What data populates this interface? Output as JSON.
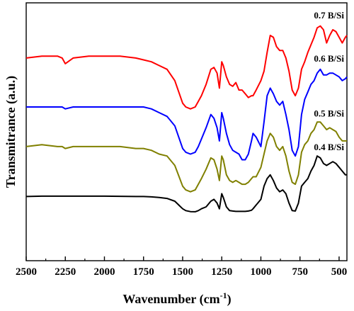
{
  "chart_data": {
    "type": "line",
    "xlabel": "Wavenumber (cm",
    "xlabel_sup": "-1",
    "xlabel_close": ")",
    "ylabel": "Transmitrance (a.u.)",
    "xlim": [
      2500,
      450
    ],
    "x_reversed": true,
    "y_ticks": false,
    "grid": false,
    "x_ticks": [
      2500,
      2250,
      2000,
      1750,
      1500,
      1250,
      1000,
      750,
      500
    ],
    "x_tick_labels": [
      "2500",
      "2250",
      "2000",
      "1750",
      "1500",
      "1250",
      "1000",
      "750",
      "500"
    ],
    "series": [
      {
        "name": "0.7 B/Si",
        "color": "#ff0000",
        "x": [
          2500,
          2400,
          2300,
          2270,
          2250,
          2200,
          2100,
          2000,
          1900,
          1800,
          1750,
          1700,
          1650,
          1600,
          1550,
          1500,
          1480,
          1450,
          1420,
          1400,
          1380,
          1350,
          1320,
          1300,
          1280,
          1265,
          1250,
          1240,
          1220,
          1200,
          1180,
          1160,
          1140,
          1120,
          1100,
          1080,
          1060,
          1050,
          1030,
          1000,
          980,
          960,
          940,
          920,
          900,
          880,
          860,
          840,
          820,
          800,
          780,
          760,
          740,
          720,
          700,
          680,
          660,
          640,
          620,
          600,
          580,
          560,
          540,
          520,
          500,
          480,
          460,
          450
        ],
        "y": [
          0.82,
          0.83,
          0.83,
          0.82,
          0.79,
          0.82,
          0.83,
          0.83,
          0.83,
          0.82,
          0.81,
          0.8,
          0.78,
          0.76,
          0.7,
          0.58,
          0.56,
          0.55,
          0.56,
          0.59,
          0.62,
          0.68,
          0.76,
          0.77,
          0.74,
          0.66,
          0.8,
          0.78,
          0.72,
          0.68,
          0.67,
          0.69,
          0.65,
          0.65,
          0.63,
          0.61,
          0.62,
          0.62,
          0.65,
          0.7,
          0.75,
          0.85,
          0.94,
          0.93,
          0.88,
          0.86,
          0.86,
          0.82,
          0.75,
          0.65,
          0.62,
          0.66,
          0.76,
          0.8,
          0.85,
          0.89,
          0.93,
          0.98,
          0.99,
          0.97,
          0.9,
          0.94,
          0.97,
          0.96,
          0.93,
          0.9,
          0.93,
          0.94
        ]
      },
      {
        "name": "0.6 B/Si",
        "color": "#0000ff",
        "x": [
          2500,
          2400,
          2300,
          2270,
          2250,
          2200,
          2100,
          2000,
          1900,
          1800,
          1750,
          1700,
          1650,
          1600,
          1550,
          1500,
          1480,
          1450,
          1420,
          1400,
          1380,
          1350,
          1320,
          1300,
          1280,
          1265,
          1250,
          1240,
          1220,
          1200,
          1180,
          1160,
          1140,
          1120,
          1100,
          1080,
          1060,
          1050,
          1030,
          1000,
          980,
          960,
          940,
          920,
          900,
          880,
          860,
          840,
          820,
          800,
          780,
          760,
          740,
          720,
          700,
          680,
          660,
          640,
          620,
          600,
          580,
          560,
          540,
          520,
          500,
          480,
          460,
          450
        ],
        "y": [
          0.56,
          0.56,
          0.56,
          0.56,
          0.55,
          0.56,
          0.56,
          0.56,
          0.56,
          0.56,
          0.56,
          0.55,
          0.53,
          0.51,
          0.46,
          0.34,
          0.32,
          0.31,
          0.32,
          0.35,
          0.39,
          0.45,
          0.52,
          0.5,
          0.45,
          0.38,
          0.53,
          0.5,
          0.42,
          0.36,
          0.33,
          0.32,
          0.31,
          0.28,
          0.28,
          0.31,
          0.38,
          0.42,
          0.4,
          0.35,
          0.48,
          0.62,
          0.66,
          0.63,
          0.59,
          0.57,
          0.59,
          0.52,
          0.44,
          0.33,
          0.3,
          0.35,
          0.52,
          0.6,
          0.64,
          0.68,
          0.7,
          0.74,
          0.76,
          0.73,
          0.73,
          0.74,
          0.74,
          0.73,
          0.72,
          0.7,
          0.71,
          0.72
        ]
      },
      {
        "name": "0.5 B/Si",
        "color": "#808000",
        "x": [
          2500,
          2400,
          2300,
          2270,
          2250,
          2200,
          2100,
          2000,
          1900,
          1800,
          1750,
          1700,
          1650,
          1600,
          1550,
          1500,
          1480,
          1450,
          1420,
          1400,
          1380,
          1350,
          1320,
          1300,
          1280,
          1265,
          1250,
          1240,
          1220,
          1200,
          1180,
          1160,
          1140,
          1120,
          1100,
          1080,
          1060,
          1050,
          1030,
          1000,
          980,
          960,
          940,
          920,
          900,
          880,
          860,
          840,
          820,
          800,
          780,
          760,
          740,
          720,
          700,
          680,
          660,
          640,
          620,
          600,
          580,
          560,
          540,
          520,
          500,
          480,
          460,
          450
        ],
        "y": [
          0.35,
          0.36,
          0.35,
          0.35,
          0.34,
          0.35,
          0.35,
          0.35,
          0.35,
          0.34,
          0.34,
          0.33,
          0.31,
          0.3,
          0.25,
          0.14,
          0.12,
          0.11,
          0.12,
          0.15,
          0.18,
          0.23,
          0.29,
          0.28,
          0.23,
          0.17,
          0.3,
          0.28,
          0.2,
          0.17,
          0.16,
          0.17,
          0.16,
          0.15,
          0.15,
          0.16,
          0.18,
          0.19,
          0.19,
          0.24,
          0.31,
          0.38,
          0.42,
          0.4,
          0.35,
          0.33,
          0.35,
          0.3,
          0.22,
          0.16,
          0.15,
          0.2,
          0.32,
          0.36,
          0.38,
          0.42,
          0.44,
          0.48,
          0.48,
          0.46,
          0.44,
          0.45,
          0.44,
          0.43,
          0.4,
          0.38,
          0.38,
          0.38
        ]
      },
      {
        "name": "0.4 B/Si",
        "color": "#000000",
        "x": [
          2500,
          2400,
          2300,
          2270,
          2250,
          2200,
          2100,
          2000,
          1900,
          1800,
          1750,
          1700,
          1650,
          1600,
          1550,
          1500,
          1480,
          1450,
          1420,
          1400,
          1380,
          1350,
          1320,
          1300,
          1280,
          1265,
          1250,
          1240,
          1220,
          1200,
          1180,
          1160,
          1140,
          1120,
          1100,
          1080,
          1060,
          1050,
          1030,
          1000,
          980,
          960,
          940,
          920,
          900,
          880,
          860,
          840,
          820,
          800,
          780,
          760,
          740,
          720,
          700,
          680,
          660,
          640,
          620,
          600,
          580,
          560,
          540,
          520,
          500,
          480,
          460,
          450
        ],
        "y": [
          0.085,
          0.087,
          0.087,
          0.087,
          0.087,
          0.087,
          0.087,
          0.087,
          0.086,
          0.085,
          0.085,
          0.083,
          0.08,
          0.075,
          0.06,
          0.02,
          0.01,
          0.005,
          0.004,
          0.01,
          0.02,
          0.03,
          0.06,
          0.07,
          0.05,
          0.02,
          0.1,
          0.08,
          0.03,
          0.01,
          0.008,
          0.006,
          0.006,
          0.006,
          0.006,
          0.008,
          0.012,
          0.02,
          0.04,
          0.07,
          0.14,
          0.18,
          0.2,
          0.17,
          0.13,
          0.11,
          0.12,
          0.1,
          0.05,
          0.01,
          0.008,
          0.05,
          0.14,
          0.16,
          0.18,
          0.22,
          0.25,
          0.3,
          0.29,
          0.26,
          0.25,
          0.26,
          0.27,
          0.26,
          0.24,
          0.22,
          0.2,
          0.2
        ]
      }
    ]
  }
}
